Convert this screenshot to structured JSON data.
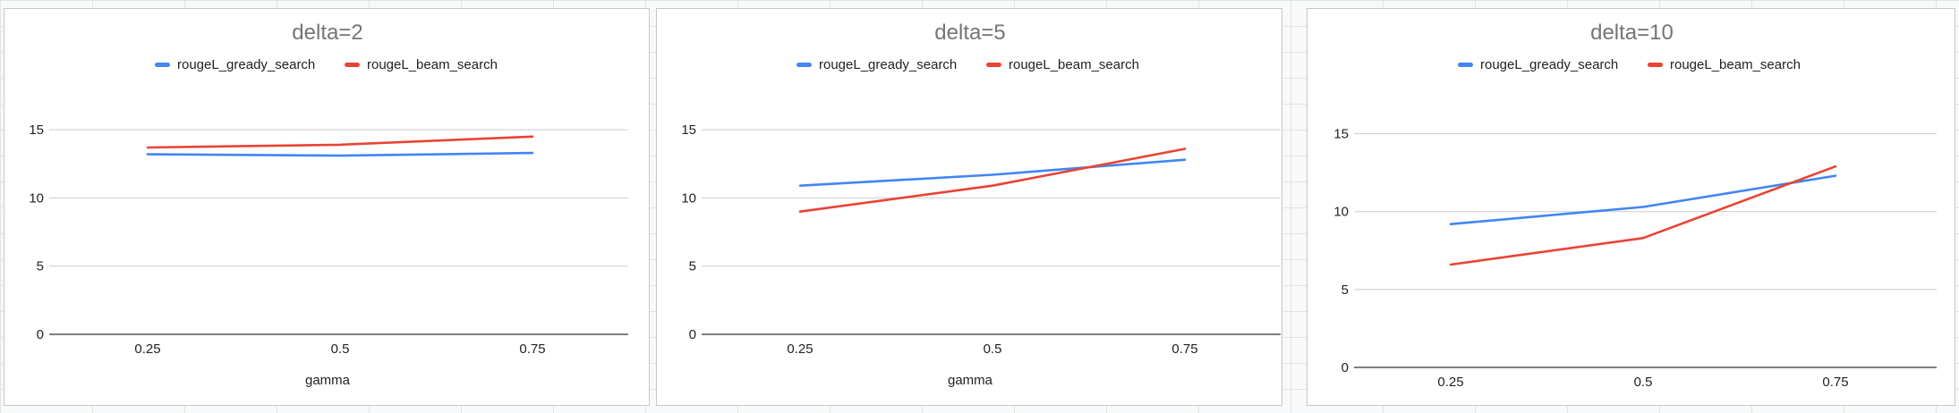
{
  "chart_data": [
    {
      "type": "line",
      "title": "delta=2",
      "xlabel": "gamma",
      "ylabel": "",
      "categories": [
        "0.25",
        "0.5",
        "0.75"
      ],
      "yticks": [
        "0",
        "5",
        "10",
        "15"
      ],
      "ylim": [
        0,
        17.5
      ],
      "grid": true,
      "legend_position": "top",
      "series": [
        {
          "name": "rougeL_gready_search",
          "color": "#4285f4",
          "values": [
            13.2,
            13.1,
            13.3
          ]
        },
        {
          "name": "rougeL_beam_search",
          "color": "#ea4335",
          "values": [
            13.7,
            13.9,
            14.5
          ]
        }
      ]
    },
    {
      "type": "line",
      "title": "delta=5",
      "xlabel": "gamma",
      "ylabel": "",
      "categories": [
        "0.25",
        "0.5",
        "0.75"
      ],
      "yticks": [
        "0",
        "5",
        "10",
        "15"
      ],
      "ylim": [
        0,
        17.5
      ],
      "grid": true,
      "legend_position": "top",
      "series": [
        {
          "name": "rougeL_gready_search",
          "color": "#4285f4",
          "values": [
            10.9,
            11.7,
            12.8
          ]
        },
        {
          "name": "rougeL_beam_search",
          "color": "#ea4335",
          "values": [
            9.0,
            10.9,
            13.6
          ]
        }
      ]
    },
    {
      "type": "line",
      "title": "delta=10",
      "xlabel": "",
      "ylabel": "",
      "categories": [
        "0.25",
        "0.5",
        "0.75"
      ],
      "yticks": [
        "0",
        "5",
        "10",
        "15"
      ],
      "ylim": [
        0,
        17.5
      ],
      "grid": true,
      "legend_position": "top",
      "series": [
        {
          "name": "rougeL_gready_search",
          "color": "#4285f4",
          "values": [
            9.2,
            10.3,
            12.3
          ]
        },
        {
          "name": "rougeL_beam_search",
          "color": "#ea4335",
          "values": [
            6.6,
            8.3,
            12.9
          ]
        }
      ]
    }
  ]
}
